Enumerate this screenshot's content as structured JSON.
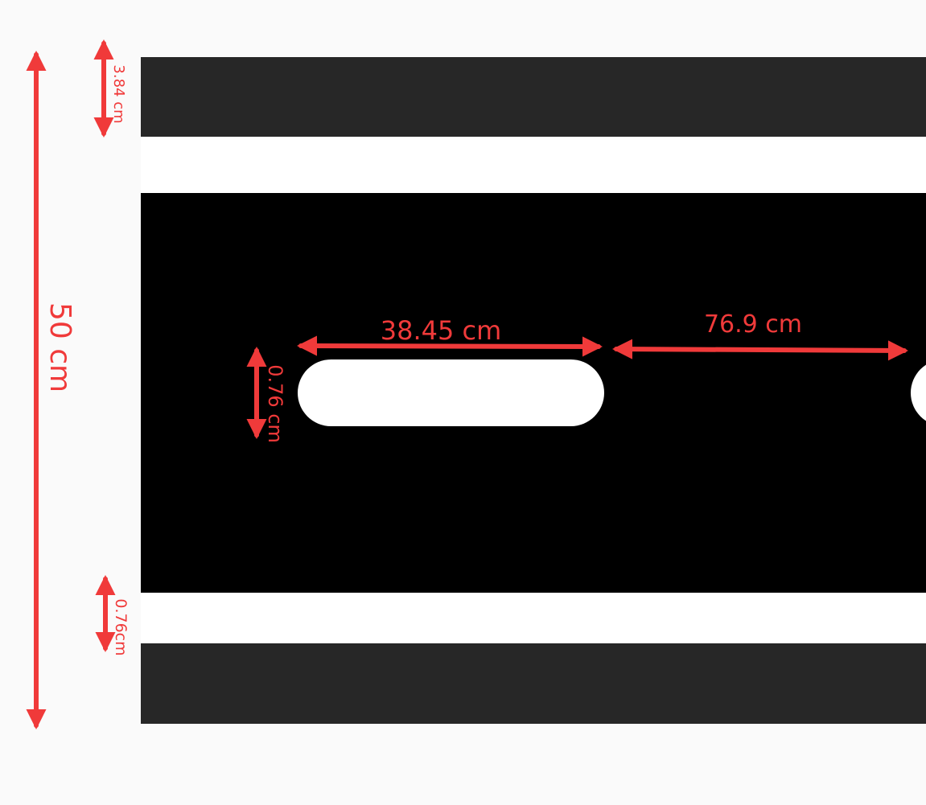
{
  "diagram": {
    "dimensions": {
      "total_height": "50 cm",
      "top_band": "3.84 cm",
      "slot_length": "38.45 cm",
      "slot_gap": "76.9 cm",
      "slot_height": "0.76 cm",
      "bottom_stripe": "0.76cm"
    }
  },
  "colors": {
    "road_edge": "#272727",
    "road": "#000000",
    "marking": "#ffffff",
    "annotation": "#f03a3a",
    "background": "#fafafa"
  }
}
